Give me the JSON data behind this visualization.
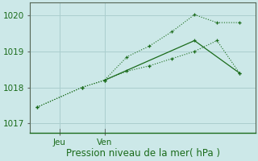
{
  "line1_x": [
    0,
    2,
    3,
    4,
    5,
    6,
    7,
    8,
    9
  ],
  "line1_y": [
    1017.45,
    1018.0,
    1018.2,
    1018.85,
    1019.15,
    1019.55,
    1020.02,
    1019.8,
    1019.8
  ],
  "line2_x": [
    0,
    2,
    3,
    4,
    5,
    6,
    7,
    8,
    9
  ],
  "line2_y": [
    1017.45,
    1018.0,
    1018.2,
    1018.45,
    1018.6,
    1018.8,
    1019.0,
    1019.3,
    1018.4
  ],
  "line3_x": [
    3,
    7,
    9
  ],
  "line3_y": [
    1018.2,
    1019.3,
    1018.4
  ],
  "jeu_x": 1,
  "ven_x": 3,
  "xlim": [
    -0.3,
    9.7
  ],
  "ylim": [
    1016.75,
    1020.35
  ],
  "yticks": [
    1017,
    1018,
    1019,
    1020
  ],
  "line_color": "#1a6b1a",
  "bg_color": "#cce8e8",
  "grid_color": "#aacece",
  "xlabel": "Pression niveau de la mer( hPa )",
  "xlabel_fontsize": 8.5,
  "tick_fontsize": 7.5
}
